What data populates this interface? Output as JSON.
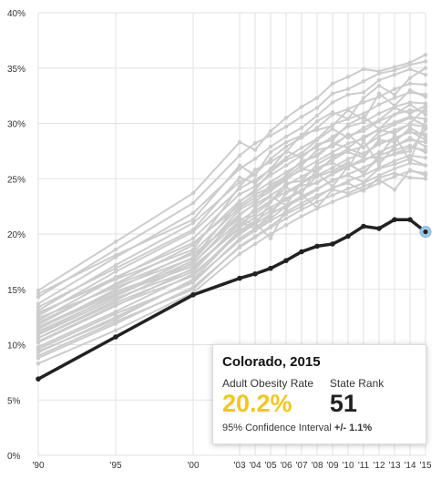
{
  "chart_data": {
    "type": "line",
    "x": [
      "'90",
      "'95",
      "'00",
      "'03",
      "'04",
      "'05",
      "'06",
      "'07",
      "'08",
      "'09",
      "'10",
      "'11",
      "'12",
      "'13",
      "'14",
      "'15"
    ],
    "x_years": [
      1990,
      1995,
      2000,
      2003,
      2004,
      2005,
      2006,
      2007,
      2008,
      2009,
      2010,
      2011,
      2012,
      2013,
      2014,
      2015
    ],
    "ylim": [
      0,
      40
    ],
    "y_ticks": [
      "0%",
      "5%",
      "10%",
      "15%",
      "20%",
      "25%",
      "30%",
      "35%",
      "40%"
    ],
    "y_tick_values": [
      0,
      5,
      10,
      15,
      20,
      25,
      30,
      35,
      40
    ],
    "grid": true,
    "highlight_color": "#222222",
    "background_color": "#cccccc",
    "highlight_series": {
      "name": "Colorado",
      "values": [
        6.9,
        10.7,
        14.5,
        16.0,
        16.4,
        16.9,
        17.6,
        18.4,
        18.9,
        19.1,
        19.8,
        20.7,
        20.5,
        21.3,
        21.3,
        20.2
      ]
    },
    "background_series": [
      {
        "values": [
          14.9,
          19.3,
          23.7,
          28.3,
          27.6,
          29.3,
          30.5,
          31.5,
          32.3,
          33.6,
          34.2,
          34.9,
          34.7,
          35.1,
          35.5,
          36.2
        ]
      },
      {
        "values": [
          14.3,
          18.6,
          22.8,
          27.1,
          28.2,
          28.9,
          29.7,
          30.6,
          31.4,
          32.7,
          33.1,
          33.8,
          34.5,
          34.8,
          35.3,
          35.6
        ]
      },
      {
        "values": [
          13.7,
          17.9,
          21.9,
          25.9,
          26.8,
          27.9,
          28.8,
          29.6,
          30.7,
          31.9,
          32.6,
          32.8,
          33.9,
          34.4,
          34.9,
          34.4
        ]
      },
      {
        "values": [
          13.1,
          17.2,
          21.0,
          24.7,
          25.4,
          26.8,
          27.9,
          28.7,
          29.6,
          30.8,
          31.3,
          31.9,
          32.4,
          33.1,
          33.6,
          33.5
        ]
      },
      {
        "values": [
          12.6,
          16.6,
          20.2,
          24.1,
          24.9,
          25.8,
          26.9,
          27.8,
          28.6,
          29.9,
          30.4,
          30.9,
          31.7,
          32.3,
          32.8,
          32.6
        ]
      },
      {
        "values": [
          12.2,
          16.0,
          19.6,
          23.6,
          24.3,
          25.3,
          26.2,
          27.1,
          27.9,
          28.8,
          29.7,
          30.1,
          30.9,
          31.5,
          31.9,
          31.8
        ]
      },
      {
        "values": [
          11.8,
          15.5,
          19.0,
          23.0,
          23.8,
          24.7,
          25.6,
          26.4,
          27.2,
          28.1,
          28.9,
          29.3,
          30.2,
          30.8,
          31.2,
          31.1
        ]
      },
      {
        "values": [
          11.4,
          15.0,
          18.4,
          22.4,
          23.3,
          24.1,
          25.0,
          25.8,
          26.6,
          27.4,
          28.2,
          28.6,
          29.5,
          30.1,
          30.6,
          30.4
        ]
      },
      {
        "values": [
          11.0,
          14.5,
          17.9,
          21.8,
          22.7,
          23.5,
          24.4,
          25.2,
          25.9,
          26.7,
          27.5,
          27.9,
          28.8,
          29.4,
          29.9,
          29.7
        ]
      },
      {
        "values": [
          10.6,
          14.0,
          17.4,
          21.2,
          22.1,
          23.0,
          23.8,
          24.6,
          25.3,
          26.0,
          26.8,
          27.3,
          28.1,
          28.7,
          29.2,
          29.0
        ]
      },
      {
        "values": [
          10.2,
          13.5,
          16.9,
          20.6,
          21.5,
          22.4,
          23.2,
          24.0,
          24.7,
          25.4,
          26.1,
          26.6,
          27.4,
          28.0,
          28.5,
          28.3
        ]
      },
      {
        "values": [
          9.8,
          13.0,
          16.4,
          20.0,
          20.9,
          21.8,
          22.6,
          23.4,
          24.1,
          24.8,
          25.4,
          26.0,
          26.7,
          27.3,
          27.8,
          27.6
        ]
      },
      {
        "values": [
          9.3,
          12.5,
          15.8,
          19.4,
          20.3,
          21.2,
          22.0,
          22.8,
          23.5,
          24.1,
          24.8,
          25.3,
          26.0,
          26.6,
          27.1,
          26.9
        ]
      },
      {
        "values": [
          8.8,
          11.9,
          15.2,
          18.8,
          19.7,
          20.6,
          21.4,
          22.2,
          22.9,
          23.5,
          24.1,
          24.6,
          25.3,
          25.9,
          26.4,
          26.2
        ]
      },
      {
        "values": [
          8.3,
          11.3,
          14.7,
          18.2,
          19.1,
          20.0,
          20.8,
          21.6,
          22.3,
          22.9,
          23.5,
          24.0,
          24.6,
          25.2,
          25.7,
          25.5
        ]
      },
      {
        "values": [
          12.9,
          15.9,
          18.6,
          24.3,
          25.8,
          26.5,
          27.4,
          29.0,
          29.4,
          29.8,
          31.2,
          30.3,
          32.7,
          31.6,
          33.0,
          32.4
        ]
      },
      {
        "values": [
          12.4,
          15.2,
          17.8,
          22.9,
          24.0,
          25.6,
          26.7,
          27.3,
          28.5,
          29.5,
          28.7,
          29.6,
          30.3,
          31.4,
          30.9,
          31.6
        ]
      },
      {
        "values": [
          11.6,
          14.8,
          17.3,
          21.7,
          22.8,
          24.5,
          25.1,
          26.2,
          27.6,
          27.9,
          29.0,
          27.8,
          29.2,
          29.9,
          30.5,
          29.8
        ]
      },
      {
        "values": [
          10.9,
          14.2,
          16.8,
          20.9,
          21.8,
          22.9,
          24.6,
          24.8,
          26.3,
          27.1,
          27.4,
          26.9,
          28.5,
          28.3,
          29.6,
          28.8
        ]
      },
      {
        "values": [
          10.3,
          13.6,
          16.2,
          20.3,
          21.2,
          22.1,
          23.1,
          23.9,
          25.2,
          25.7,
          26.5,
          25.4,
          27.1,
          27.6,
          28.0,
          27.4
        ]
      },
      {
        "values": [
          9.6,
          12.8,
          15.6,
          19.6,
          20.5,
          21.4,
          22.5,
          23.2,
          24.0,
          24.9,
          25.3,
          24.7,
          25.9,
          26.3,
          26.8,
          26.2
        ]
      },
      {
        "values": [
          9.0,
          12.1,
          15.0,
          18.9,
          19.8,
          20.7,
          21.8,
          22.5,
          23.3,
          24.2,
          24.6,
          23.9,
          25.1,
          25.5,
          25.1,
          25.0
        ]
      },
      {
        "values": [
          11.5,
          14.6,
          17.1,
          20.5,
          22.4,
          23.4,
          22.6,
          24.7,
          25.5,
          24.3,
          26.1,
          26.8,
          27.0,
          28.9,
          26.6,
          30.2
        ]
      },
      {
        "values": [
          12.0,
          15.4,
          18.2,
          21.4,
          20.8,
          22.9,
          24.2,
          23.6,
          26.0,
          26.4,
          25.9,
          28.4,
          26.3,
          27.9,
          28.7,
          27.9
        ]
      },
      {
        "values": [
          13.4,
          16.9,
          20.4,
          25.1,
          24.6,
          25.9,
          27.5,
          26.9,
          28.1,
          28.5,
          29.9,
          30.6,
          29.5,
          30.8,
          31.7,
          30.8
        ]
      },
      {
        "values": [
          10.6,
          13.8,
          16.6,
          21.1,
          20.5,
          21.7,
          23.7,
          24.4,
          24.6,
          25.5,
          26.3,
          25.6,
          26.8,
          27.2,
          27.5,
          29.5
        ]
      },
      {
        "values": [
          14.6,
          18.1,
          21.3,
          26.2,
          25.3,
          27.4,
          28.3,
          28.9,
          30.2,
          31.0,
          30.4,
          32.3,
          33.4,
          32.6,
          34.1,
          35.0
        ]
      },
      {
        "values": [
          9.4,
          12.3,
          15.9,
          20.2,
          21.0,
          19.6,
          22.3,
          23.5,
          22.4,
          24.0,
          23.7,
          24.3,
          24.9,
          24.0,
          25.8,
          25.3
        ]
      },
      {
        "values": [
          12.8,
          16.1,
          19.2,
          22.6,
          23.6,
          24.2,
          25.3,
          26.6,
          27.0,
          28.2,
          27.8,
          28.8,
          29.4,
          29.1,
          30.0,
          31.4
        ]
      },
      {
        "values": [
          11.2,
          14.4,
          17.6,
          22.2,
          23.0,
          23.9,
          24.9,
          25.9,
          25.6,
          26.9,
          27.7,
          27.2,
          28.2,
          28.6,
          29.3,
          28.5
        ]
      }
    ],
    "points_visible_years": [
      1990,
      1995,
      2000,
      2003,
      2004,
      2005,
      2006,
      2007,
      2008,
      2009,
      2010,
      2011,
      2012,
      2013,
      2014,
      2015
    ],
    "last_point_marker_color": "#9ec9e6"
  },
  "tooltip": {
    "title": "Colorado, 2015",
    "rate_label": "Adult Obesity Rate",
    "rate_value": "20.2%",
    "rank_label": "State Rank",
    "rank_value": "51",
    "ci_label": "95% Confidence Interval",
    "ci_value": "+/- 1.1%"
  }
}
